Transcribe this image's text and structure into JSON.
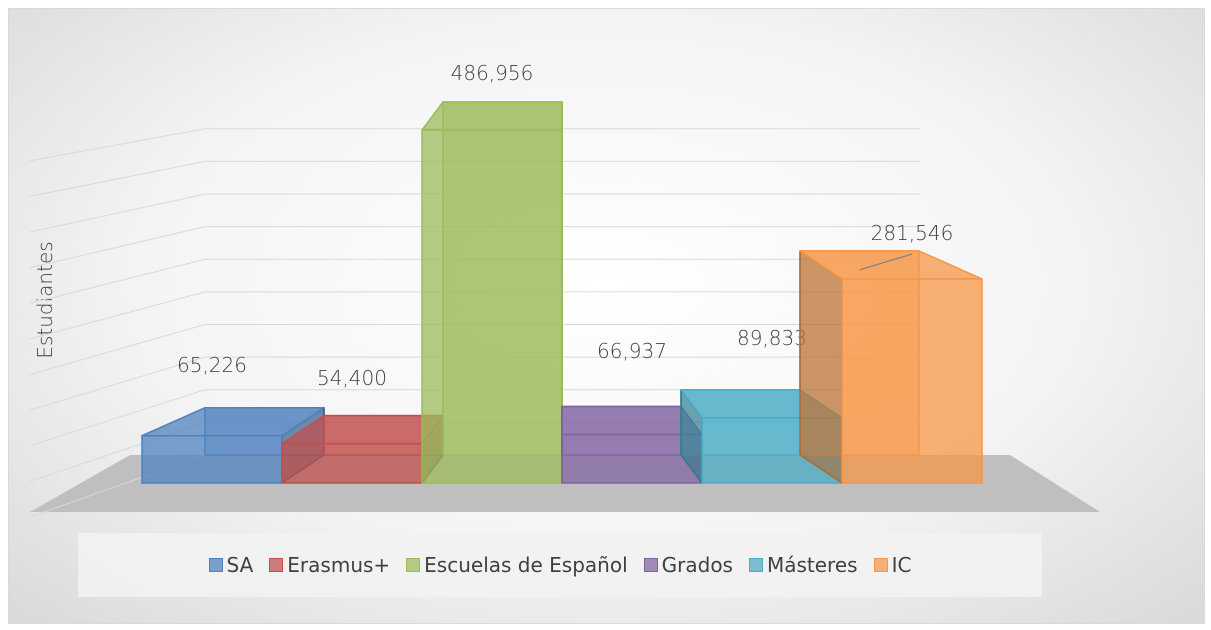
{
  "chart_data": {
    "type": "bar3d",
    "y_label": "Estudiantes",
    "series": [
      {
        "name": "SA",
        "color": "#4f81bd",
        "values": [
          65226
        ],
        "value_labels": [
          "65,226"
        ]
      },
      {
        "name": "Erasmus+",
        "color": "#c0504d",
        "values": [
          54400
        ],
        "value_labels": [
          "54,400"
        ]
      },
      {
        "name": "Escuelas de Español",
        "color": "#9bbb59",
        "values": [
          486956
        ],
        "value_labels": [
          "486,956"
        ]
      },
      {
        "name": "Grados",
        "color": "#8064a2",
        "values": [
          66937
        ],
        "value_labels": [
          "66,937"
        ]
      },
      {
        "name": "Másteres",
        "color": "#4bacc6",
        "values": [
          89833
        ],
        "value_labels": [
          "89,833"
        ]
      },
      {
        "name": "IC",
        "color": "#f79646",
        "values": [
          281546
        ],
        "value_labels": [
          "281,546"
        ]
      }
    ],
    "ylim": [
      0,
      500000
    ],
    "yticks": [
      0,
      50000,
      100000,
      150000,
      200000,
      250000,
      300000,
      350000,
      400000,
      450000,
      500000
    ],
    "grid": true
  }
}
